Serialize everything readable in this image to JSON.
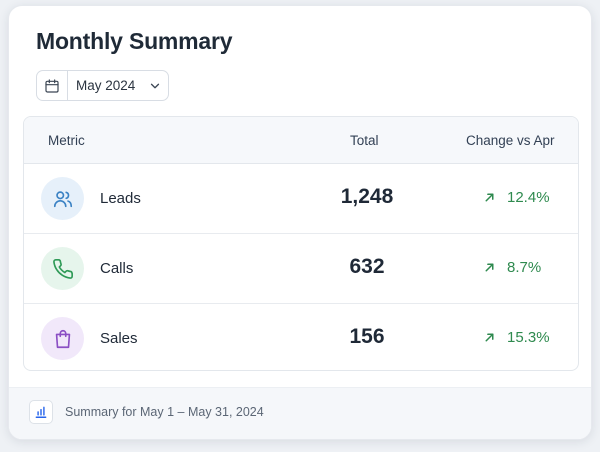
{
  "title": "Monthly Summary",
  "date_picker": {
    "value": "May 2024",
    "icon": "calendar-icon",
    "dropdown_icon": "chevron-down-icon"
  },
  "table": {
    "columns": [
      "Metric",
      "Total",
      "Change vs Apr"
    ],
    "rows": [
      {
        "metric": "Leads",
        "total": "1,248",
        "change": "12.4%",
        "trend": "up",
        "icon": "users-icon",
        "icon_color": "#3b82c4",
        "icon_bg": "#e6f0fa"
      },
      {
        "metric": "Calls",
        "total": "632",
        "change": "8.7%",
        "trend": "up",
        "icon": "phone-icon",
        "icon_color": "#2f9a57",
        "icon_bg": "#e6f5ec"
      },
      {
        "metric": "Sales",
        "total": "156",
        "change": "15.3%",
        "trend": "up",
        "icon": "shopping-bag-icon",
        "icon_color": "#8b4fc4",
        "icon_bg": "#f1e8fa"
      }
    ]
  },
  "footer": {
    "text": "Summary for May 1 – May 31, 2024",
    "icon": "bar-chart-icon"
  },
  "colors": {
    "positive": "#2f8a4f",
    "accent": "#2563eb"
  }
}
